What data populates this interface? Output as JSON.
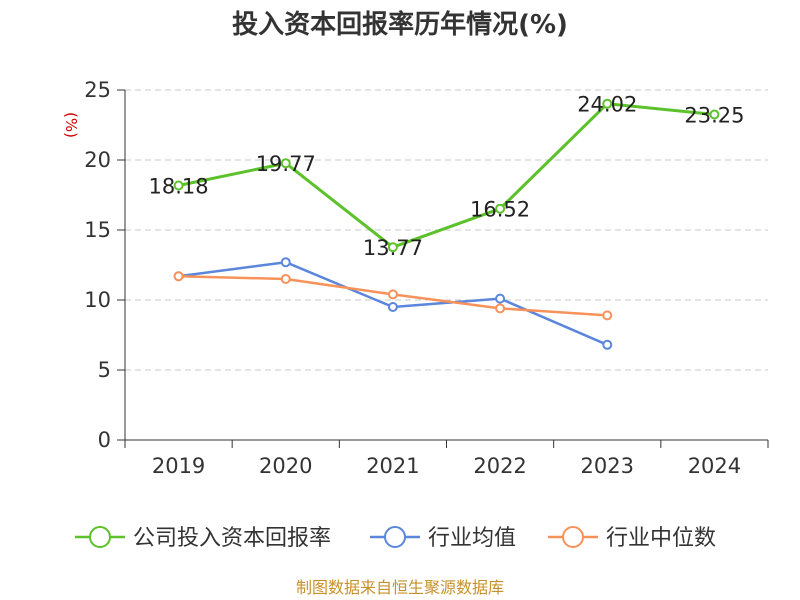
{
  "chart_data": {
    "type": "line",
    "title": "投入资本回报率历年情况(%)",
    "xlabel": "",
    "ylabel": "(%)",
    "categories": [
      "2019",
      "2020",
      "2021",
      "2022",
      "2023",
      "2024"
    ],
    "ylim": [
      0,
      25
    ],
    "yticks": [
      0,
      5,
      10,
      15,
      20,
      25
    ],
    "grid": true,
    "legend_position": "bottom",
    "series": [
      {
        "name": "公司投入资本回报率",
        "color": "#5cc12a",
        "values": [
          18.18,
          19.77,
          13.77,
          16.52,
          24.02,
          23.25
        ],
        "labels": [
          "18.18",
          "19.77",
          "13.77",
          "16.52",
          "24.02",
          "23.25"
        ]
      },
      {
        "name": "行业均值",
        "color": "#5b86dc",
        "values": [
          11.7,
          12.7,
          9.5,
          10.1,
          6.8,
          null
        ]
      },
      {
        "name": "行业中位数",
        "color": "#f7925a",
        "values": [
          11.7,
          11.5,
          10.4,
          9.4,
          8.9,
          null
        ]
      }
    ],
    "source": "制图数据来自恒生聚源数据库"
  }
}
